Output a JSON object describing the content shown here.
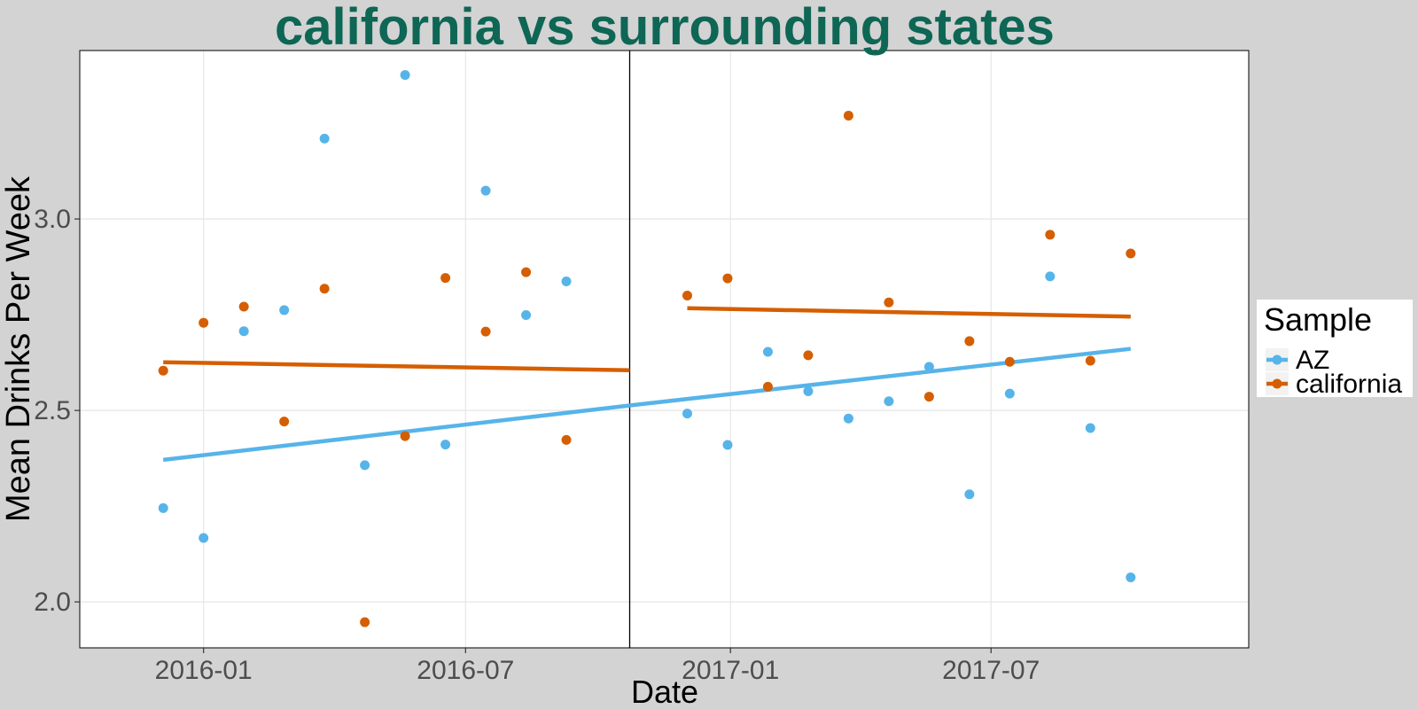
{
  "colors": {
    "page_background": "#d3d3d3",
    "panel_background": "#ffffff",
    "grid": "#e6e6e6",
    "title": "#0e6655",
    "tick_text": "#4d4d4d",
    "axis_title": "#000000",
    "AZ": "#56b4e9",
    "california": "#d55e00"
  },
  "chart_data": {
    "type": "scatter",
    "title": "california vs surrounding states",
    "xlabel": "Date",
    "ylabel": "Mean Drinks Per Week",
    "x_type": "date",
    "xlim": [
      "2015-10-07",
      "2017-12-27"
    ],
    "ylim": [
      1.88,
      3.44
    ],
    "x_ticks": [
      "2016-01",
      "2016-07",
      "2017-01",
      "2017-07"
    ],
    "y_ticks": [
      2.0,
      2.5,
      3.0
    ],
    "y_tick_labels": [
      "2.0",
      "2.5",
      "3.0"
    ],
    "grid": true,
    "vertical_line": "2016-10-23",
    "legend": {
      "title": "Sample",
      "position": "right"
    },
    "series": [
      {
        "name": "AZ",
        "color": "#56b4e9",
        "points": [
          {
            "x": "2015-12-04",
            "y": 2.245
          },
          {
            "x": "2016-01-01",
            "y": 2.167
          },
          {
            "x": "2016-01-29",
            "y": 2.707
          },
          {
            "x": "2016-02-26",
            "y": 2.762
          },
          {
            "x": "2016-03-25",
            "y": 3.21
          },
          {
            "x": "2016-04-22",
            "y": 2.357
          },
          {
            "x": "2016-05-20",
            "y": 3.376
          },
          {
            "x": "2016-06-17",
            "y": 2.411
          },
          {
            "x": "2016-07-15",
            "y": 3.074
          },
          {
            "x": "2016-08-12",
            "y": 2.749
          },
          {
            "x": "2016-09-09",
            "y": 2.837
          },
          {
            "x": "2016-12-02",
            "y": 2.492
          },
          {
            "x": "2016-12-30",
            "y": 2.41
          },
          {
            "x": "2017-01-27",
            "y": 2.653
          },
          {
            "x": "2017-02-24",
            "y": 2.55
          },
          {
            "x": "2017-03-24",
            "y": 2.479
          },
          {
            "x": "2017-04-21",
            "y": 2.524
          },
          {
            "x": "2017-05-19",
            "y": 2.614
          },
          {
            "x": "2017-06-16",
            "y": 2.281
          },
          {
            "x": "2017-07-14",
            "y": 2.544
          },
          {
            "x": "2017-08-11",
            "y": 2.85
          },
          {
            "x": "2017-09-08",
            "y": 2.454
          },
          {
            "x": "2017-10-06",
            "y": 2.064
          }
        ],
        "trend_segments": [
          {
            "x": [
              "2015-12-04",
              "2016-10-23"
            ],
            "y": [
              2.371,
              2.513
            ]
          },
          {
            "x": [
              "2016-10-23",
              "2017-10-06"
            ],
            "y": [
              2.513,
              2.661
            ]
          }
        ]
      },
      {
        "name": "california",
        "color": "#d55e00",
        "points": [
          {
            "x": "2015-12-04",
            "y": 2.604
          },
          {
            "x": "2016-01-01",
            "y": 2.729
          },
          {
            "x": "2016-01-29",
            "y": 2.771
          },
          {
            "x": "2016-02-26",
            "y": 2.471
          },
          {
            "x": "2016-03-25",
            "y": 2.818
          },
          {
            "x": "2016-04-22",
            "y": 1.947
          },
          {
            "x": "2016-05-20",
            "y": 2.433
          },
          {
            "x": "2016-06-17",
            "y": 2.846
          },
          {
            "x": "2016-07-15",
            "y": 2.706
          },
          {
            "x": "2016-08-12",
            "y": 2.861
          },
          {
            "x": "2016-09-09",
            "y": 2.423
          },
          {
            "x": "2016-12-02",
            "y": 2.8
          },
          {
            "x": "2016-12-30",
            "y": 2.845
          },
          {
            "x": "2017-01-27",
            "y": 2.562
          },
          {
            "x": "2017-02-24",
            "y": 2.644
          },
          {
            "x": "2017-03-24",
            "y": 3.27
          },
          {
            "x": "2017-04-21",
            "y": 2.782
          },
          {
            "x": "2017-05-19",
            "y": 2.536
          },
          {
            "x": "2017-06-16",
            "y": 2.681
          },
          {
            "x": "2017-07-14",
            "y": 2.627
          },
          {
            "x": "2017-08-11",
            "y": 2.959
          },
          {
            "x": "2017-09-08",
            "y": 2.63
          },
          {
            "x": "2017-10-06",
            "y": 2.91
          }
        ],
        "trend_segments": [
          {
            "x": [
              "2015-12-04",
              "2016-10-23"
            ],
            "y": [
              2.626,
              2.605
            ]
          },
          {
            "x": [
              "2016-12-02",
              "2017-10-06"
            ],
            "y": [
              2.767,
              2.745
            ]
          }
        ]
      }
    ]
  }
}
